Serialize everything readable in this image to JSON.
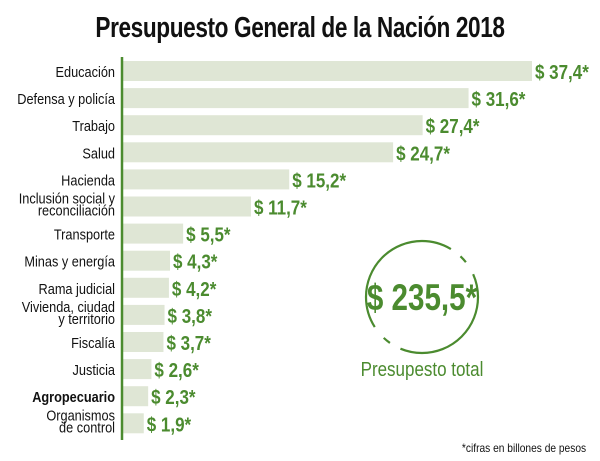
{
  "chart_data": {
    "type": "bar",
    "orientation": "horizontal",
    "title": "Presupuesto General de la Nación 2018",
    "categories": [
      "Educación",
      "Defensa y policía",
      "Trabajo",
      "Salud",
      "Hacienda",
      "Inclusión social y reconciliación",
      "Transporte",
      "Minas y energía",
      "Rama judicial",
      "Vivienda, ciudad y territorio",
      "Fiscalía",
      "Justicia",
      "Agropecuario",
      "Organismos de control"
    ],
    "category_lines": [
      [
        "Educación"
      ],
      [
        "Defensa y policía"
      ],
      [
        "Trabajo"
      ],
      [
        "Salud"
      ],
      [
        "Hacienda"
      ],
      [
        "Inclusión social y",
        "reconciliación"
      ],
      [
        "Transporte"
      ],
      [
        "Minas y energía"
      ],
      [
        "Rama judicial"
      ],
      [
        "Vivienda, ciudad",
        "y territorio"
      ],
      [
        "Fiscalía"
      ],
      [
        "Justicia"
      ],
      [
        "Agropecuario"
      ],
      [
        "Organismos",
        "de control"
      ]
    ],
    "highlighted_category": "Agropecuario",
    "values": [
      37.4,
      31.6,
      27.4,
      24.7,
      15.2,
      11.7,
      5.5,
      4.3,
      4.2,
      3.8,
      3.7,
      2.6,
      2.3,
      1.9
    ],
    "data_labels": [
      "$ 37,4*",
      "$ 31,6*",
      "$ 27,4*",
      "$ 24,7*",
      "$ 15,2*",
      "$ 11,7*",
      "$ 5,5*",
      "$ 4,3*",
      "$ 4,2*",
      "$ 3,8*",
      "$ 3,7*",
      "$ 2,6*",
      "$ 2,3*",
      "$ 1,9*"
    ],
    "xlim": [
      0,
      37.4
    ],
    "grid": false,
    "total": {
      "value_label": "$ 235,5*",
      "label": "Presupesto total"
    },
    "footnote": "*cifras en billones de pesos",
    "colors": {
      "bar": "#dfe6d5",
      "accent": "#4b8b2f",
      "axis": "#4b8b2f",
      "text": "#111111"
    }
  }
}
